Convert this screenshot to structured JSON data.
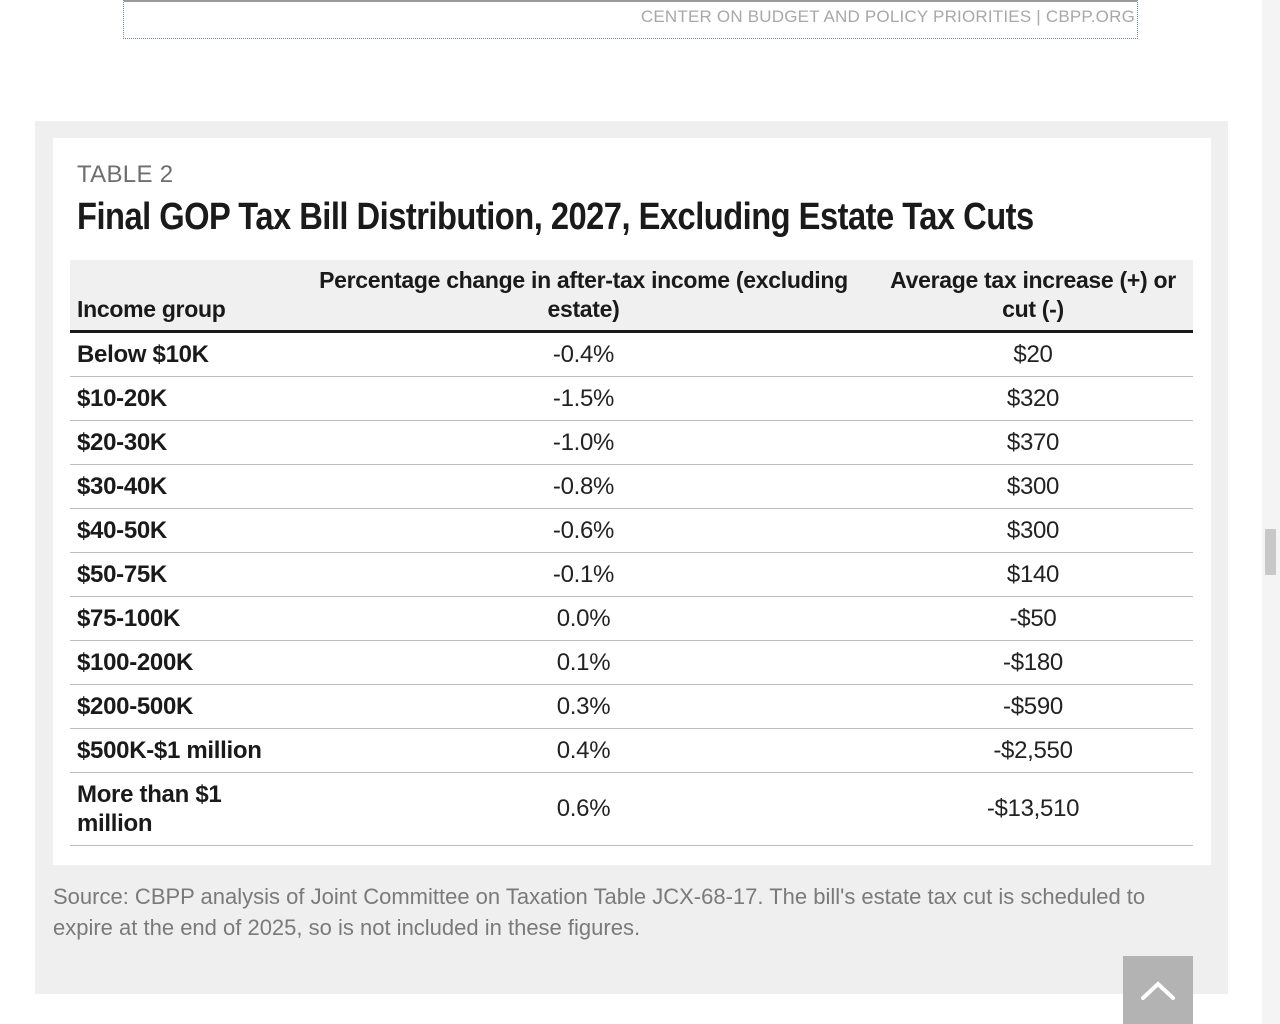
{
  "credit": "CENTER ON BUDGET AND POLICY PRIORITIES | CBPP.ORG",
  "table": {
    "label": "TABLE 2",
    "title": "Final GOP Tax Bill Distribution, 2027, Excluding Estate Tax Cuts",
    "headers": [
      "Income group",
      "Percentage change in after-tax income (excluding estate)",
      "Average tax increase (+) or cut (-)"
    ],
    "rows": [
      {
        "group": "Below $10K",
        "pct": "-0.4%",
        "avg": "$20"
      },
      {
        "group": "$10-20K",
        "pct": "-1.5%",
        "avg": "$320"
      },
      {
        "group": "$20-30K",
        "pct": "-1.0%",
        "avg": "$370"
      },
      {
        "group": "$30-40K",
        "pct": "-0.8%",
        "avg": "$300"
      },
      {
        "group": "$40-50K",
        "pct": "-0.6%",
        "avg": "$300"
      },
      {
        "group": "$50-75K",
        "pct": "-0.1%",
        "avg": "$140"
      },
      {
        "group": "$75-100K",
        "pct": "0.0%",
        "avg": "-$50"
      },
      {
        "group": "$100-200K",
        "pct": "0.1%",
        "avg": "-$180"
      },
      {
        "group": "$200-500K",
        "pct": "0.3%",
        "avg": "-$590"
      },
      {
        "group": "$500K-$1 million",
        "pct": "0.4%",
        "avg": "-$2,550"
      },
      {
        "group": "More than $1 million",
        "pct": "0.6%",
        "avg": "-$13,510"
      }
    ]
  },
  "source": "Source: CBPP analysis of Joint Committee on Taxation Table JCX-68-17. The bill's estate tax cut is scheduled to expire at the end of 2025, so is not included in these figures.",
  "colors": {
    "panel_bg": "#efefef",
    "header_bg": "#f0f0f0",
    "back_to_top_bg": "#b3b3b3"
  },
  "icons": {
    "back_to_top": "chevron-up-icon"
  }
}
